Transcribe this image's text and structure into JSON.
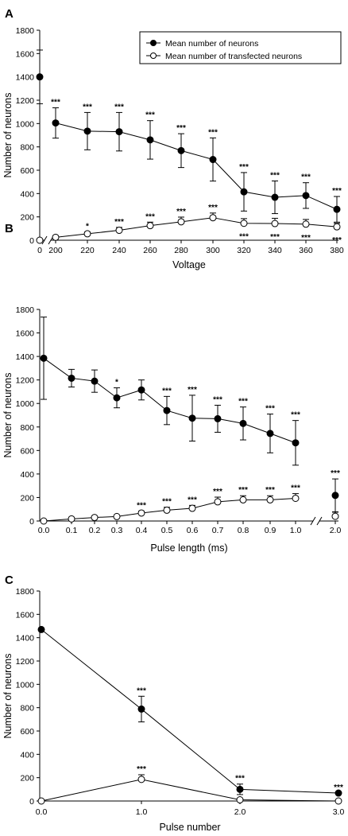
{
  "chart_data": [
    {
      "panel": "A",
      "type": "line",
      "xlabel": "Voltage",
      "ylabel": "Number of neurons",
      "ylim": [
        0,
        1800
      ],
      "y_ticks": [
        "0",
        "200",
        "400",
        "600",
        "800",
        "1000",
        "1200",
        "1400",
        "1600",
        "1800"
      ],
      "x_tick_labels": [
        "0",
        "200",
        "220",
        "240",
        "260",
        "280",
        "300",
        "320",
        "340",
        "360",
        "380"
      ],
      "axis_break": "between 0 and 200",
      "legend": {
        "placement": "top-right",
        "entries": [
          "Mean number of neurons",
          "Mean number of transfected neurons"
        ]
      },
      "series": [
        {
          "name": "Mean number of neurons",
          "marker": "filled-circle",
          "x": [
            "0",
            "200",
            "220",
            "240",
            "260",
            "280",
            "300",
            "320",
            "340",
            "360",
            "380"
          ],
          "values": [
            1400,
            1005,
            935,
            930,
            860,
            768,
            692,
            415,
            368,
            383,
            265
          ],
          "error": [
            230,
            130,
            160,
            165,
            165,
            145,
            185,
            165,
            140,
            110,
            110
          ],
          "labels": [
            "",
            "***",
            "***",
            "***",
            "***",
            "***",
            "***",
            "***",
            "***",
            "***",
            "***"
          ]
        },
        {
          "name": "Mean number of transfected neurons",
          "marker": "open-circle",
          "x": [
            "0",
            "200",
            "220",
            "240",
            "260",
            "280",
            "300",
            "320",
            "340",
            "360",
            "380"
          ],
          "values": [
            0,
            25,
            55,
            85,
            125,
            158,
            193,
            145,
            143,
            138,
            115
          ],
          "error": [
            0,
            10,
            15,
            25,
            30,
            40,
            40,
            40,
            45,
            40,
            30
          ],
          "labels": [
            "",
            "",
            "*",
            "***",
            "***",
            "***",
            "***",
            "***",
            "***",
            "***",
            "***"
          ]
        }
      ]
    },
    {
      "panel": "B",
      "type": "line",
      "xlabel": "Pulse length (ms)",
      "ylabel": "Number of neurons",
      "ylim": [
        0,
        1800
      ],
      "y_ticks": [
        "0",
        "200",
        "400",
        "600",
        "800",
        "1000",
        "1200",
        "1400",
        "1600",
        "1800"
      ],
      "x_tick_labels": [
        "0.0",
        "0.1",
        "0.2",
        "0.3",
        "0.4",
        "0.5",
        "0.6",
        "0.7",
        "0.8",
        "0.9",
        "1.0",
        "2.0"
      ],
      "axis_break": "between 1.0 and 2.0",
      "series": [
        {
          "name": "Mean number of neurons",
          "marker": "filled-circle",
          "x": [
            "0.0",
            "0.1",
            "0.2",
            "0.3",
            "0.4",
            "0.5",
            "0.6",
            "0.7",
            "0.8",
            "0.9",
            "1.0",
            "2.0"
          ],
          "values": [
            1385,
            1215,
            1190,
            1048,
            1115,
            940,
            875,
            870,
            830,
            745,
            665,
            218
          ],
          "error": [
            350,
            75,
            95,
            85,
            85,
            120,
            195,
            115,
            140,
            165,
            190,
            140
          ],
          "labels": [
            "",
            "",
            "",
            "*",
            "",
            "***",
            "***",
            "***",
            "***",
            "***",
            "***",
            "***"
          ]
        },
        {
          "name": "Mean number of transfected neurons",
          "marker": "open-circle",
          "x": [
            "0.0",
            "0.1",
            "0.2",
            "0.3",
            "0.4",
            "0.5",
            "0.6",
            "0.7",
            "0.8",
            "0.9",
            "1.0",
            "2.0"
          ],
          "values": [
            0,
            18,
            30,
            38,
            68,
            92,
            108,
            163,
            180,
            180,
            193,
            40
          ],
          "error": [
            0,
            8,
            10,
            10,
            15,
            25,
            25,
            40,
            35,
            35,
            40,
            35
          ],
          "labels": [
            "",
            "",
            "",
            "",
            "***",
            "***",
            "***",
            "***",
            "***",
            "***",
            "***",
            ""
          ]
        }
      ]
    },
    {
      "panel": "C",
      "type": "line",
      "xlabel": "Pulse number",
      "ylabel": "Number of neurons",
      "ylim": [
        0,
        1800
      ],
      "y_ticks": [
        "0",
        "200",
        "400",
        "600",
        "800",
        "1000",
        "1200",
        "1400",
        "1600",
        "1800"
      ],
      "x_tick_labels": [
        "0.0",
        "1.0",
        "2.0",
        "3.0"
      ],
      "series": [
        {
          "name": "Mean number of neurons",
          "marker": "filled-circle",
          "x": [
            "0.0",
            "1.0",
            "2.0",
            "3.0"
          ],
          "values": [
            1470,
            788,
            100,
            68
          ],
          "error": [
            0,
            110,
            45,
            0
          ],
          "labels": [
            "",
            "***",
            "***",
            "***"
          ]
        },
        {
          "name": "Mean number of transfected neurons",
          "marker": "open-circle",
          "x": [
            "0.0",
            "1.0",
            "2.0",
            "3.0"
          ],
          "values": [
            0,
            185,
            10,
            0
          ],
          "error": [
            0,
            40,
            5,
            0
          ],
          "labels": [
            "",
            "***",
            "",
            ""
          ]
        }
      ]
    }
  ]
}
